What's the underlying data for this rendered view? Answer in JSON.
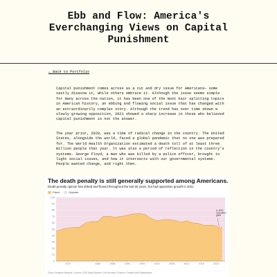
{
  "page": {
    "title_line1": "Ebb and Flow: America's",
    "title_line2": "Everchanging Views on Capital",
    "title_line3": "Punishment",
    "back_link": "← Back to Portfolio",
    "paragraph1": "Capital punishment comes across as a cut and dry issue for Americans— some vastly disavow it, while others embrace it. Although the issue seems simple for many across the nation, it has been one of the most hair splitting topics in American history, an ebbing and flowing social issue that has changed with an extraordinarily complex story. Although the trend has over time shown a slowly growing opposition, 2021 showed a sharp increase in those who believed capital punishment is not the answer.",
    "paragraph2": "The year prior, 2020, was a time of radical change in the country. The United States, alongside the world, faced a global pandemic that no one was prepared for. The World Health Organization estimated a death toll of at least three million people that year. It was also a period of reflection in the country's systems. George Floyd, a man who was killed by a police officer, brought to light social issues, and how it intersects with our governmental systems. People wanted change, and right then."
  },
  "chart_data": {
    "type": "area",
    "title": "The death penalty is still generally supported among Americans.",
    "subtitle": "Death penalty opinion has ebbed and flowed throughout the last 50 years, but had opposition growth in 2021.",
    "legend": [
      "Favor",
      "Oppose"
    ],
    "colors": {
      "favor": "#f9c97d",
      "oppose": "#f4dee9",
      "line": "#e59a3f"
    },
    "annotation": "In 2021 opposition grew",
    "x_ticks": [
      "1970",
      "1980",
      "1985",
      "1990",
      "1995",
      "2000",
      "2005",
      "2010",
      "2015",
      "2020"
    ],
    "y_ticks": [
      0,
      10,
      20,
      30,
      40,
      50,
      60,
      70,
      80,
      90,
      100
    ],
    "ylim": [
      0,
      100
    ],
    "xlim": [
      1966,
      2023
    ],
    "x": [
      1966,
      1969,
      1972,
      1974,
      1976,
      1978,
      1980,
      1982,
      1984,
      1986,
      1988,
      1990,
      1992,
      1994,
      1996,
      1998,
      2000,
      2002,
      2004,
      2006,
      2008,
      2010,
      2012,
      2014,
      2016,
      2018,
      2019,
      2020,
      2021,
      2022
    ],
    "favor": [
      47,
      51,
      53,
      53,
      60,
      62,
      62,
      70,
      70,
      69,
      70,
      72,
      74,
      75,
      73,
      67,
      63,
      65,
      65,
      64,
      61,
      63,
      60,
      59,
      56,
      56,
      56,
      55,
      51,
      53
    ],
    "footnote": "Chart: Jonathan Newport • Source: GSS Data Explorer • Get the data • Embed • Created with Datawrapper"
  }
}
